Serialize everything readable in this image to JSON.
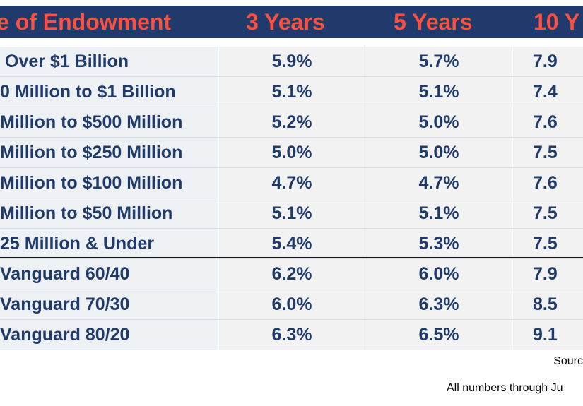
{
  "chart_data": {
    "type": "table",
    "columns": [
      "e of Endowment",
      "3 Years",
      "5 Years",
      "10 Y"
    ],
    "rows": [
      {
        "label": "Over $1 Billion",
        "values": [
          "5.9%",
          "5.7%",
          "7.9"
        ]
      },
      {
        "label": "0 Million to $1 Billion",
        "values": [
          "5.1%",
          "5.1%",
          "7.4"
        ]
      },
      {
        "label": "Million to $500 Million",
        "values": [
          "5.2%",
          "5.0%",
          "7.6"
        ]
      },
      {
        "label": "Million to $250 Million",
        "values": [
          "5.0%",
          "5.0%",
          "7.5"
        ]
      },
      {
        "label": "Million to $100 Million",
        "values": [
          "4.7%",
          "4.7%",
          "7.6"
        ]
      },
      {
        "label": "Million to $50 Million",
        "values": [
          "5.1%",
          "5.1%",
          "7.5"
        ]
      },
      {
        "label": "25 Million & Under",
        "values": [
          "5.4%",
          "5.3%",
          "7.5"
        ]
      },
      {
        "label": "Vanguard 60/40",
        "values": [
          "6.2%",
          "6.0%",
          "7.9"
        ]
      },
      {
        "label": "Vanguard 70/30",
        "values": [
          "6.0%",
          "6.3%",
          "8.5"
        ]
      },
      {
        "label": "Vanguard 80/20",
        "values": [
          "6.3%",
          "6.5%",
          "9.1"
        ]
      }
    ]
  },
  "source_text": "Sourc",
  "footnote_text": "All numbers through Ju",
  "colors": {
    "header_bg": "#1f3a6b",
    "header_text": "#ff4f3f",
    "body_text": "#1f3a6b",
    "label_cell_bg": "#eef1f4",
    "value_cell_bg": "#f2f2f2",
    "divider": "#111111"
  }
}
